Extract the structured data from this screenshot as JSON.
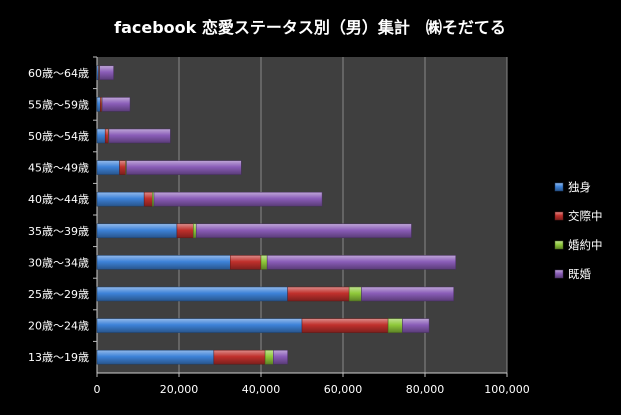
{
  "chart_data": {
    "type": "bar",
    "orientation": "horizontal",
    "stacked": true,
    "title": "facebook 恋愛ステータス別（男）集計　㈱そだてる",
    "xlabel": "",
    "ylabel": "",
    "xlim": [
      0,
      100000
    ],
    "x_ticks": [
      0,
      20000,
      40000,
      60000,
      80000,
      100000
    ],
    "x_tick_labels": [
      "0",
      "20,000",
      "40,000",
      "60,000",
      "80,000",
      "100,000"
    ],
    "grid": true,
    "legend_position": "right",
    "categories": [
      "13歳～19歳",
      "20歳～24歳",
      "25歳～29歳",
      "30歳～34歳",
      "35歳～39歳",
      "40歳～44歳",
      "45歳～49歳",
      "50歳～54歳",
      "55歳～59歳",
      "60歳～64歳"
    ],
    "series": [
      {
        "name": "独身",
        "color": "#3d82d8",
        "values": [
          28500,
          50000,
          46500,
          32500,
          19500,
          11500,
          5500,
          2000,
          800,
          400
        ]
      },
      {
        "name": "交際中",
        "color": "#c0302c",
        "values": [
          12500,
          21000,
          15000,
          7500,
          4000,
          2000,
          1500,
          800,
          400,
          200
        ]
      },
      {
        "name": "婚約中",
        "color": "#8fc93a",
        "values": [
          2000,
          3500,
          3000,
          1500,
          700,
          400,
          200,
          100,
          50,
          50
        ]
      },
      {
        "name": "既婚",
        "color": "#8a5db8",
        "values": [
          3500,
          6500,
          22500,
          46000,
          52500,
          41000,
          28000,
          15000,
          6800,
          3400
        ]
      }
    ]
  }
}
